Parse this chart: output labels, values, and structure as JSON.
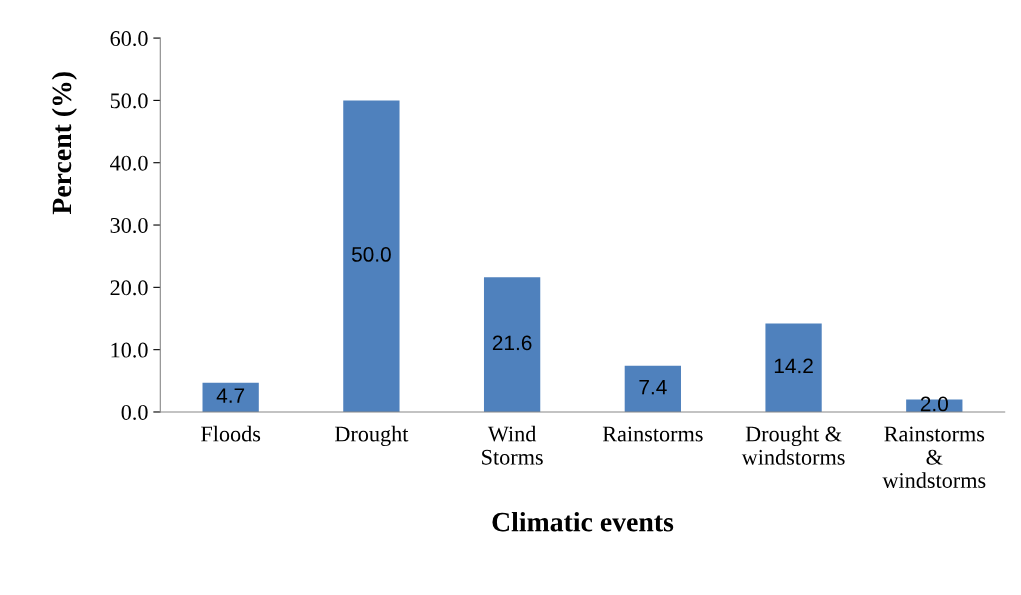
{
  "chart_data": {
    "type": "bar",
    "xlabel": "Climatic events",
    "ylabel": "Percent (%)",
    "categories": [
      "Floods",
      "Drought",
      "Wind\nStorms",
      "Rainstorms",
      "Drought &\nwindstorms",
      "Rainstorms\n&\nwindstorms"
    ],
    "values": [
      4.7,
      50.0,
      21.6,
      7.4,
      14.2,
      2.0
    ],
    "color": "#4f81bd",
    "value_labels": [
      "4.7",
      "50.0",
      "21.6",
      "7.4",
      "14.2",
      "2.0"
    ],
    "ylim": [
      0,
      60
    ],
    "yticks": [
      {
        "value": 0,
        "label": "0.0"
      },
      {
        "value": 10,
        "label": "10.0"
      },
      {
        "value": 20,
        "label": "20.0"
      },
      {
        "value": 30,
        "label": "30.0"
      },
      {
        "value": 40,
        "label": "40.0"
      },
      {
        "value": 50,
        "label": "50.0"
      },
      {
        "value": 60,
        "label": "60.0"
      }
    ],
    "grid": false,
    "legend": false
  }
}
